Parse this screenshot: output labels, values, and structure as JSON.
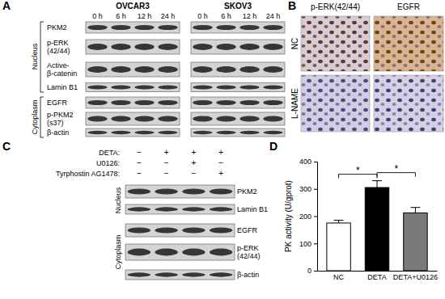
{
  "figure": {
    "panel_labels": [
      "A",
      "B",
      "C",
      "D"
    ],
    "panel_a": {
      "cell_lines": [
        "OVCAR3",
        "SKOV3"
      ],
      "times": [
        "0 h",
        "6 h",
        "12 h",
        "24 h"
      ],
      "compartments": [
        "Nucleus",
        "Cytoplasm"
      ],
      "rows": [
        [
          "PKM2"
        ],
        [
          "p-ERK",
          "(42/44)"
        ],
        [
          "Active-",
          "β-catenin"
        ],
        [
          "Lamin B1"
        ],
        [
          "EGFR"
        ],
        [
          "p-PKM2",
          "(s37)"
        ],
        [
          "β-actin"
        ]
      ]
    },
    "panel_b": {
      "columns": [
        "p-ERK(42/44)",
        "EGFR"
      ],
      "rows": [
        "NC",
        "L-NAME"
      ]
    },
    "panel_c": {
      "treatments": [
        {
          "label": "DETA:",
          "signs": [
            "−",
            "+",
            "+",
            "+"
          ]
        },
        {
          "label": "U0126:",
          "signs": [
            "−",
            "−",
            "+",
            "−"
          ]
        },
        {
          "label": "Tyrphostin AG1478:",
          "signs": [
            "−",
            "−",
            "−",
            "+"
          ]
        }
      ],
      "compartments": [
        "Nucleus",
        "Cytoplasm"
      ],
      "rows": [
        [
          "PKM2"
        ],
        [
          "Lamin B1"
        ],
        [
          "EGFR"
        ],
        [
          "p-ERK",
          "(42/44)"
        ],
        [
          "β-actin"
        ]
      ]
    }
  },
  "chart_data": {
    "type": "bar",
    "categories": [
      "NC",
      "DETA",
      "DETA+U0126"
    ],
    "values": [
      175,
      305,
      212
    ],
    "errors": [
      10,
      25,
      20
    ],
    "colors": [
      "#ffffff",
      "#000000",
      "#7a7a7a"
    ],
    "y_label": "PK activity (U/gprot)",
    "ylim": [
      0,
      400
    ],
    "yticks": [
      0,
      100,
      200,
      300,
      400
    ],
    "annotations": [
      {
        "text": "*",
        "from": "NC",
        "to": "DETA"
      },
      {
        "text": "*",
        "from": "DETA",
        "to": "DETA+U0126"
      }
    ]
  }
}
